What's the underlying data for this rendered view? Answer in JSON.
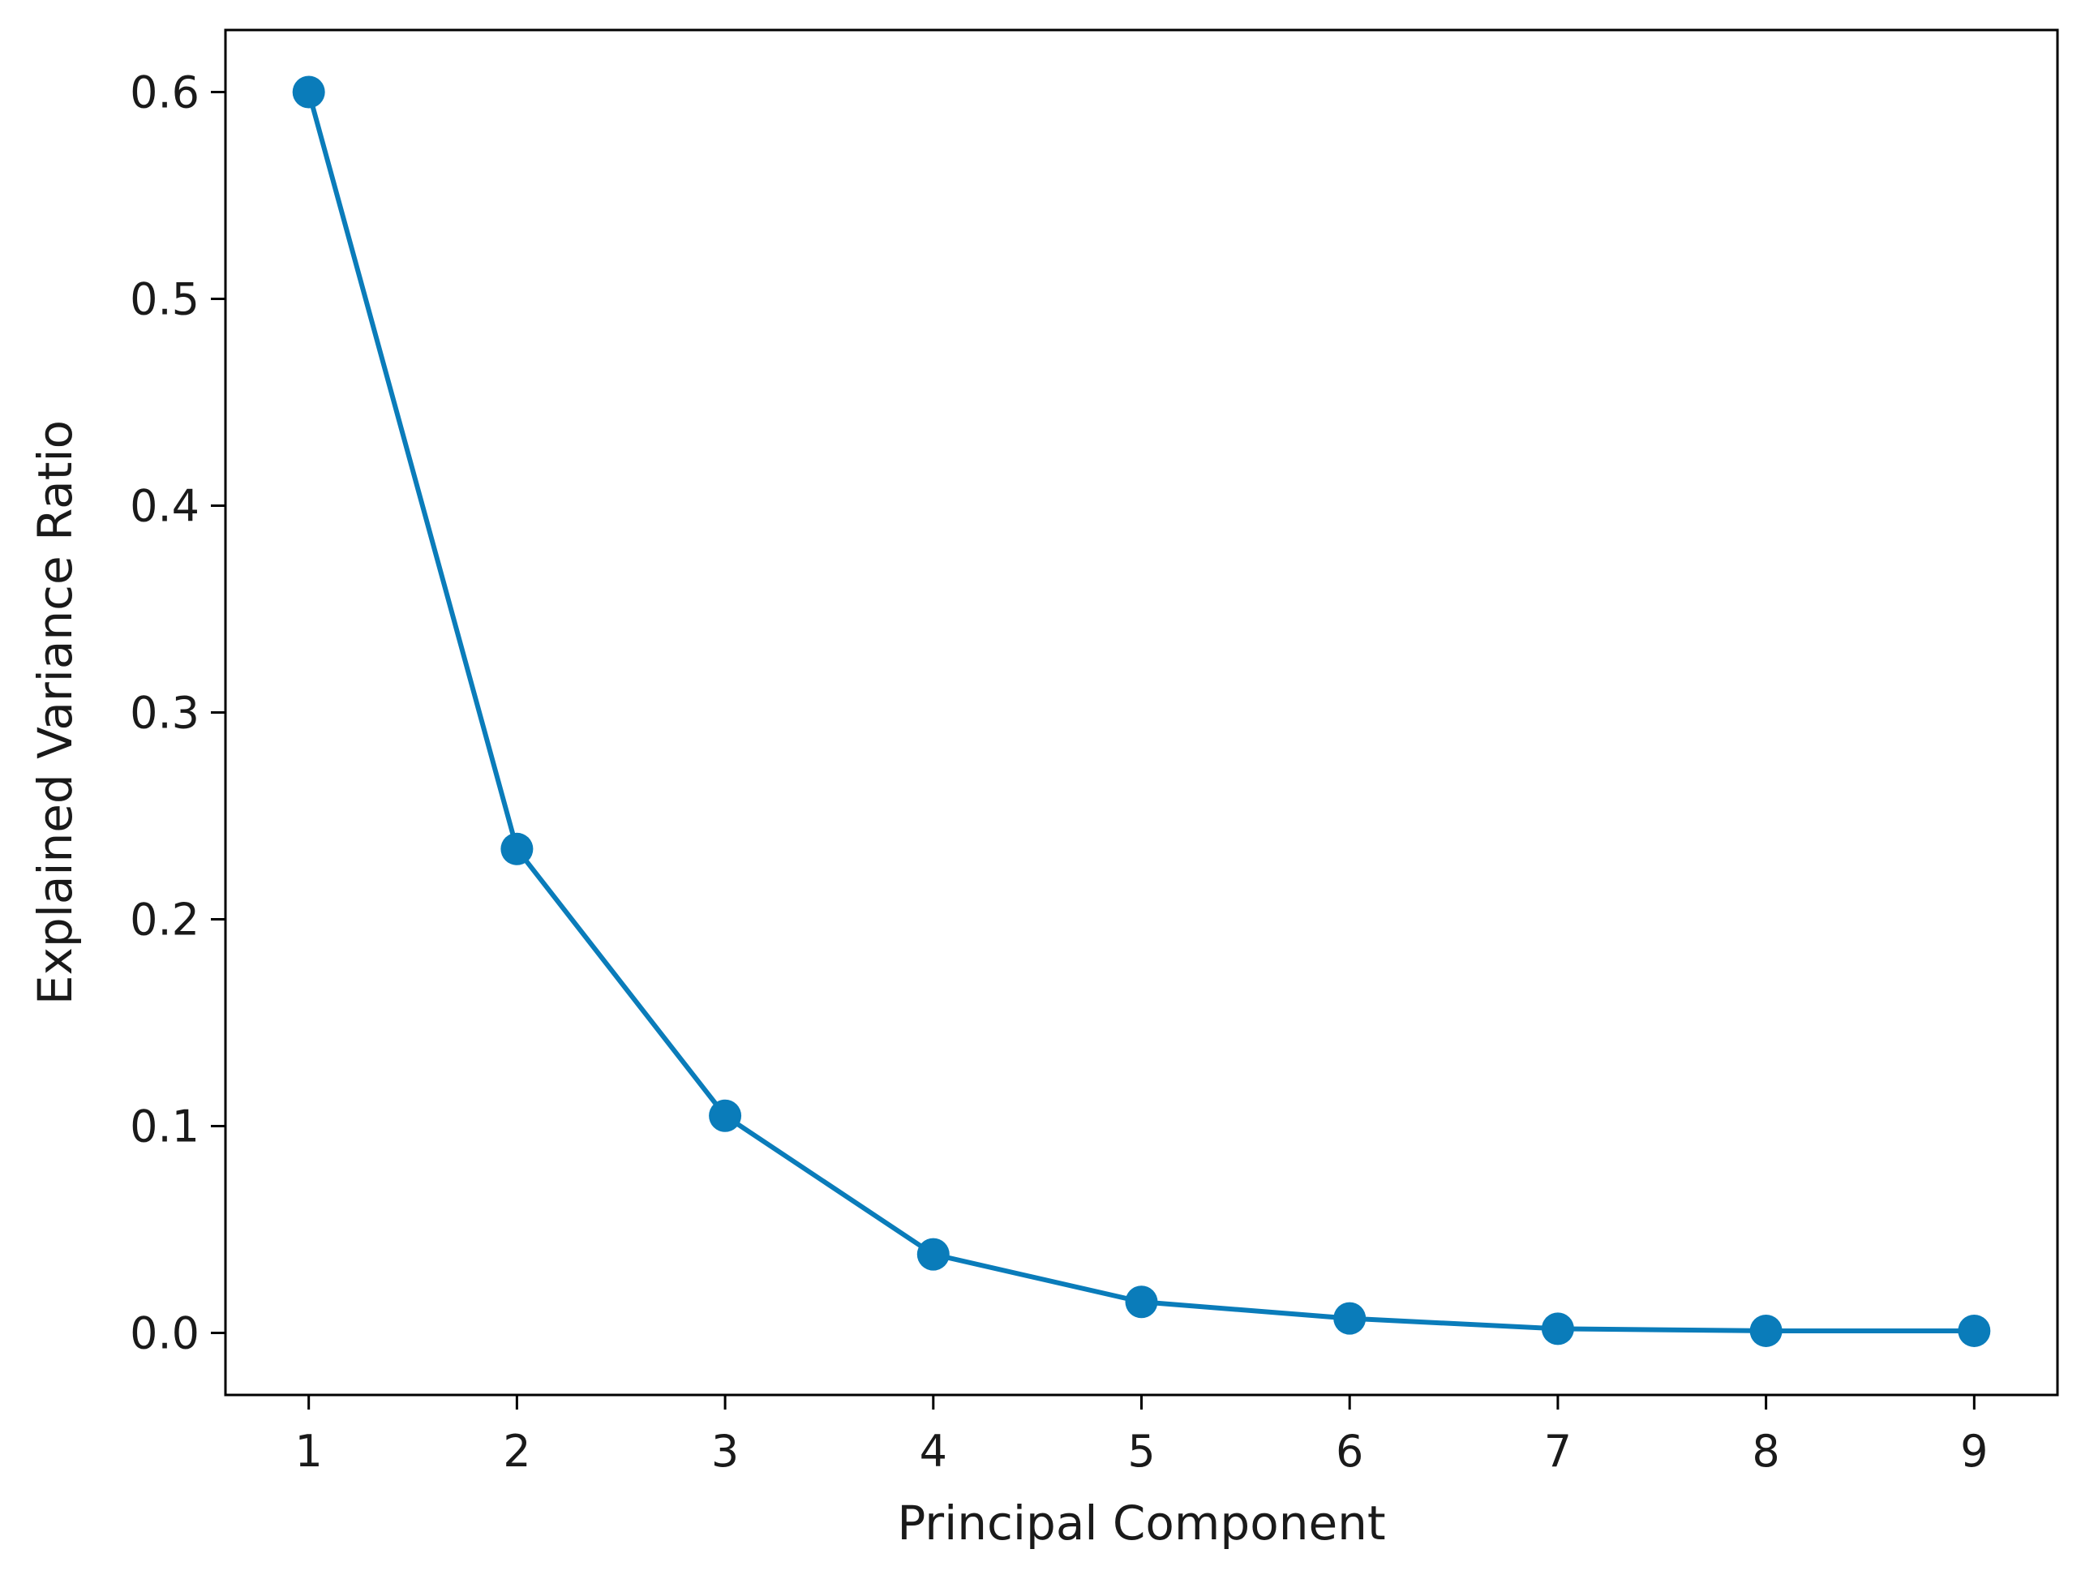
{
  "chart_data": {
    "type": "line",
    "title": "",
    "xlabel": "Principal Component",
    "ylabel": "Explained Variance Ratio",
    "x": [
      1,
      2,
      3,
      4,
      5,
      6,
      7,
      8,
      9
    ],
    "x_ticks": [
      "1",
      "2",
      "3",
      "4",
      "5",
      "6",
      "7",
      "8",
      "9"
    ],
    "y_ticks": [
      "0.0",
      "0.1",
      "0.2",
      "0.3",
      "0.4",
      "0.5",
      "0.6"
    ],
    "xlim": [
      0.6,
      9.4
    ],
    "ylim": [
      -0.03,
      0.63
    ],
    "grid": false,
    "legend": "none",
    "markers": true,
    "series": [
      {
        "color": "#0a7cba",
        "values": [
          0.6,
          0.234,
          0.105,
          0.038,
          0.015,
          0.007,
          0.002,
          0.001,
          0.001
        ]
      }
    ]
  }
}
